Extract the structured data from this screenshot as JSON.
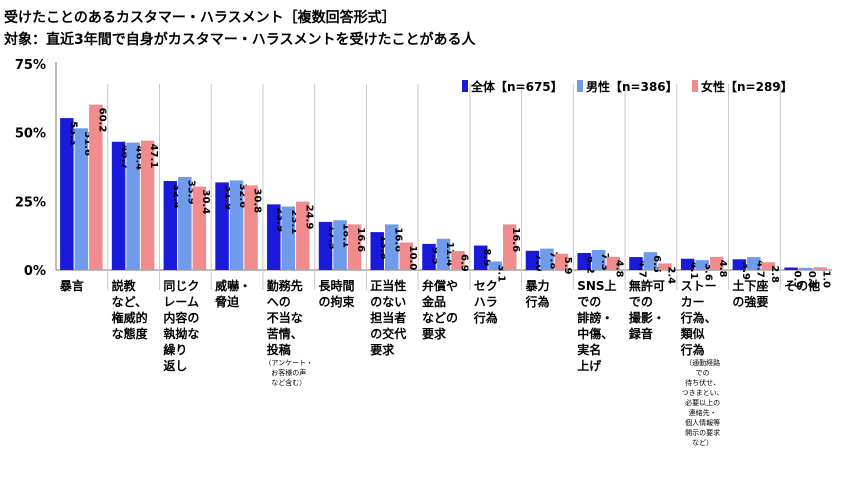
{
  "title": "受けたことのあるカスタマー・ハラスメント［複数回答形式］",
  "subtitle": "対象：直近3年間で自身がカスタマー・ハラスメントを受けたことがある人",
  "chart_data": {
    "type": "bar",
    "title": "受けたことのあるカスタマー・ハラスメント［複数回答形式］",
    "subtitle": "対象：直近3年間で自身がカスタマー・ハラスメントを受けたことがある人",
    "y_ticks": [
      "75%",
      "50%",
      "25%",
      "0%"
    ],
    "ylim": [
      0,
      75
    ],
    "grid": false,
    "legend_position": "top-right",
    "categories": [
      {
        "lines": [
          "暴言"
        ],
        "note": []
      },
      {
        "lines": [
          "説教",
          "など、",
          "権威的",
          "な態度"
        ],
        "note": []
      },
      {
        "lines": [
          "同じク",
          "レーム",
          "内容の",
          "執拗な",
          "繰り",
          "返し"
        ],
        "note": []
      },
      {
        "lines": [
          "威嚇・",
          "脅迫"
        ],
        "note": []
      },
      {
        "lines": [
          "勤務先",
          "への",
          "不当な",
          "苦情、",
          "投稿"
        ],
        "note": [
          "（アンケート・",
          "お客様の声",
          "など含む）"
        ]
      },
      {
        "lines": [
          "長時間",
          "の拘束"
        ],
        "note": []
      },
      {
        "lines": [
          "正当性",
          "のない",
          "担当者",
          "の交代",
          "要求"
        ],
        "note": []
      },
      {
        "lines": [
          "弁償や",
          "金品",
          "などの",
          "要求"
        ],
        "note": []
      },
      {
        "lines": [
          "セク",
          "ハラ",
          "行為"
        ],
        "note": []
      },
      {
        "lines": [
          "暴力",
          "行為"
        ],
        "note": []
      },
      {
        "lines": [
          "SNS上",
          "での",
          "誹謗・",
          "中傷、",
          "実名",
          "上げ"
        ],
        "note": []
      },
      {
        "lines": [
          "無許可",
          "での",
          "撮影・",
          "録音"
        ],
        "note": []
      },
      {
        "lines": [
          "ストー",
          "カー",
          "行為、",
          "類似",
          "行為"
        ],
        "note": [
          "（通勤経路",
          "での",
          "待ち伏せ、",
          "つきまとい、",
          "必要以上の",
          "連絡先・",
          "個人情報等",
          "開示の要求",
          "など）"
        ]
      },
      {
        "lines": [
          "土下座",
          "の強要"
        ],
        "note": []
      },
      {
        "lines": [
          "その他"
        ],
        "note": []
      }
    ],
    "series": [
      {
        "name": "全体【n=675】",
        "color": "#1a1adb",
        "values": [
          55.3,
          46.7,
          32.4,
          31.9,
          23.9,
          17.5,
          13.8,
          9.5,
          8.9,
          7.0,
          6.2,
          4.7,
          4.1,
          3.9,
          0.9
        ]
      },
      {
        "name": "男性【n=386】",
        "color": "#6f9bea",
        "values": [
          51.6,
          46.4,
          33.9,
          32.6,
          23.1,
          18.1,
          16.6,
          11.4,
          3.1,
          7.8,
          7.3,
          6.5,
          3.6,
          4.7,
          0.8
        ]
      },
      {
        "name": "女性【n=289】",
        "color": "#f08c8e",
        "values": [
          60.2,
          47.1,
          30.4,
          30.8,
          24.9,
          16.6,
          10.0,
          6.9,
          16.6,
          5.9,
          4.8,
          2.4,
          4.8,
          2.8,
          1.0
        ]
      }
    ],
    "value_labels": [
      [
        "55.3",
        "46.7",
        "32.4",
        "31.9",
        "23.9",
        "17.5",
        "13.8",
        "9.5",
        "8.9",
        "7.0",
        "6.2",
        "4.7",
        "4.1",
        "3.9",
        "0.9"
      ],
      [
        "51.6",
        "46.4",
        "33.9",
        "32.6",
        "23.1",
        "18.1",
        "16.6",
        "11.4",
        "3.1",
        "7.8",
        "7.3",
        "6.5",
        "3.6",
        "4.7",
        "0.8"
      ],
      [
        "60.2",
        "47.1",
        "30.4",
        "30.8",
        "24.9",
        "16.6",
        "10.0",
        "6.9",
        "16.6",
        "5.9",
        "4.8",
        "2.4",
        "4.8",
        "2.8",
        "1.0"
      ]
    ]
  }
}
